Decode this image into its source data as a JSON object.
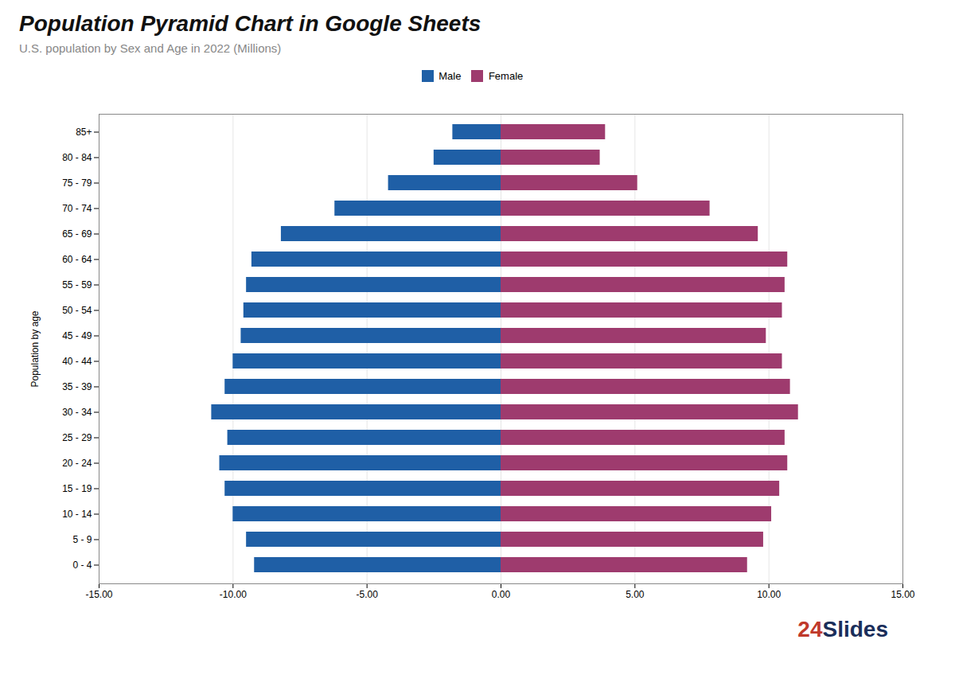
{
  "chart_data": {
    "type": "bar",
    "orientation": "horizontal",
    "title": "Population Pyramid Chart in Google Sheets",
    "subtitle": "U.S. population by Sex and Age in 2022 (Millions)",
    "ylabel": "Population by age",
    "categories": [
      "85+",
      "80 - 84",
      "75 - 79",
      "70 - 74",
      "65 - 69",
      "60 - 64",
      "55 - 59",
      "50 - 54",
      "45 - 49",
      "40 - 44",
      "35 - 39",
      "30 - 34",
      "25 - 29",
      "20 - 24",
      "15 - 19",
      "10 - 14",
      "5 - 9",
      "0 - 4"
    ],
    "series": [
      {
        "name": "Male",
        "color": "#1f5fa6",
        "values": [
          -1.8,
          -2.5,
          -4.2,
          -6.2,
          -8.2,
          -9.3,
          -9.5,
          -9.6,
          -9.7,
          -10.0,
          -10.3,
          -10.8,
          -10.2,
          -10.5,
          -10.3,
          -10.0,
          -9.5,
          -9.2
        ]
      },
      {
        "name": "Female",
        "color": "#9e3b6e",
        "values": [
          3.9,
          3.7,
          5.1,
          7.8,
          9.6,
          10.7,
          10.6,
          10.5,
          9.9,
          10.5,
          10.8,
          11.1,
          10.6,
          10.7,
          10.4,
          10.1,
          9.8,
          9.2
        ]
      }
    ],
    "xlim": [
      -15,
      15
    ],
    "xticks": [
      {
        "value": -15,
        "label": "-15.00"
      },
      {
        "value": -10,
        "label": "-10.00"
      },
      {
        "value": -5,
        "label": "-5.00"
      },
      {
        "value": 0,
        "label": "0.00"
      },
      {
        "value": 5,
        "label": "5.00"
      },
      {
        "value": 10,
        "label": "10.00"
      },
      {
        "value": 15,
        "label": "15.00"
      }
    ],
    "grid": true,
    "legend": "top",
    "annotations": [
      {
        "text": "24",
        "color": "#c0392b"
      },
      {
        "text": "Slides",
        "color": "#1a2e5a"
      }
    ]
  }
}
